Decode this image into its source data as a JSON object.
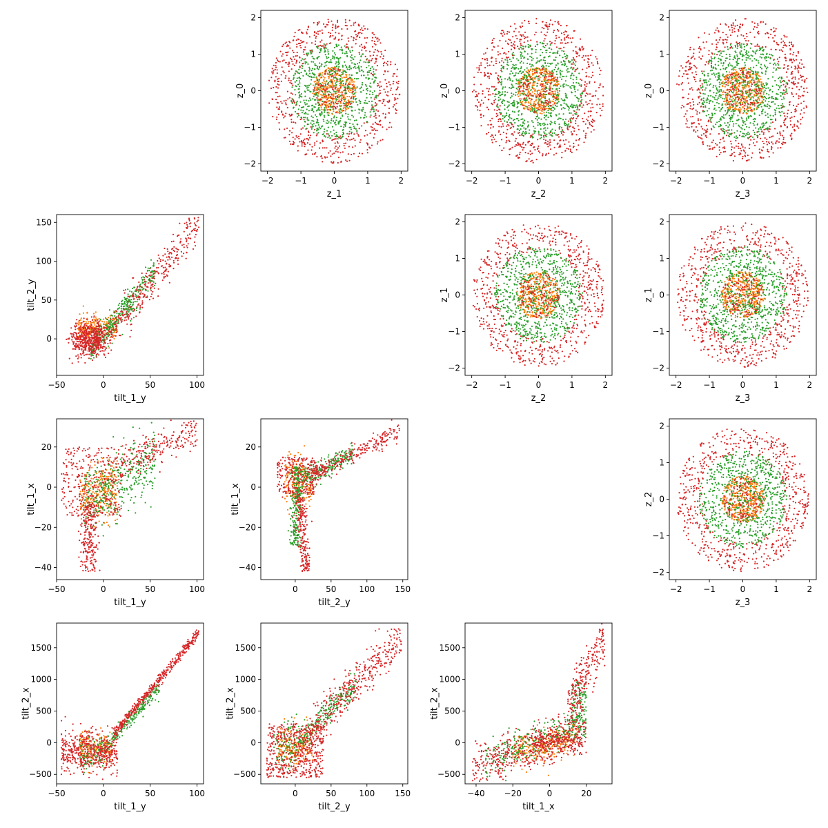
{
  "colors": {
    "outer": "#d62728",
    "middle": "#2ca02c",
    "inner": "#ff7f0e"
  },
  "chart_data": [
    {
      "type": "scatter",
      "row": 0,
      "col": 1,
      "xlabel": "z_1",
      "ylabel": "z_0",
      "xlim": [
        -2.2,
        2.2
      ],
      "ylim": [
        -2.2,
        2.2
      ],
      "xticks": [
        -2,
        -1,
        0,
        1,
        2
      ],
      "xtick_labels": [
        "−2",
        "−1",
        "0",
        "1",
        "2"
      ],
      "yticks": [
        -2,
        -1,
        0,
        1,
        2
      ],
      "ytick_labels": [
        "−2",
        "−1",
        "0",
        "1",
        "2"
      ],
      "pattern": "rings"
    },
    {
      "type": "scatter",
      "row": 0,
      "col": 2,
      "xlabel": "z_2",
      "ylabel": "z_0",
      "xlim": [
        -2.2,
        2.2
      ],
      "ylim": [
        -2.2,
        2.2
      ],
      "xticks": [
        -2,
        -1,
        0,
        1,
        2
      ],
      "xtick_labels": [
        "−2",
        "−1",
        "0",
        "1",
        "2"
      ],
      "yticks": [
        -2,
        -1,
        0,
        1,
        2
      ],
      "ytick_labels": [
        "−2",
        "−1",
        "0",
        "1",
        "2"
      ],
      "pattern": "rings"
    },
    {
      "type": "scatter",
      "row": 0,
      "col": 3,
      "xlabel": "z_3",
      "ylabel": "z_0",
      "xlim": [
        -2.2,
        2.2
      ],
      "ylim": [
        -2.2,
        2.2
      ],
      "xticks": [
        -2,
        -1,
        0,
        1,
        2
      ],
      "xtick_labels": [
        "−2",
        "−1",
        "0",
        "1",
        "2"
      ],
      "yticks": [
        -2,
        -1,
        0,
        1,
        2
      ],
      "ytick_labels": [
        "−2",
        "−1",
        "0",
        "1",
        "2"
      ],
      "pattern": "rings"
    },
    {
      "type": "scatter",
      "row": 1,
      "col": 0,
      "xlabel": "tilt_1_y",
      "ylabel": "tilt_2_y",
      "xlim": [
        -50,
        107
      ],
      "ylim": [
        -47,
        160
      ],
      "xticks": [
        -50,
        0,
        50,
        100
      ],
      "xtick_labels": [
        "−50",
        "0",
        "50",
        "100"
      ],
      "yticks": [
        0,
        50,
        100,
        150
      ],
      "ytick_labels": [
        "0",
        "50",
        "100",
        "150"
      ],
      "pattern": "t1y_t2y"
    },
    {
      "type": "scatter",
      "row": 1,
      "col": 2,
      "xlabel": "z_2",
      "ylabel": "z_1",
      "xlim": [
        -2.2,
        2.2
      ],
      "ylim": [
        -2.2,
        2.2
      ],
      "xticks": [
        -2,
        -1,
        0,
        1,
        2
      ],
      "xtick_labels": [
        "−2",
        "−1",
        "0",
        "1",
        "2"
      ],
      "yticks": [
        -2,
        -1,
        0,
        1,
        2
      ],
      "ytick_labels": [
        "−2",
        "−1",
        "0",
        "1",
        "2"
      ],
      "pattern": "rings"
    },
    {
      "type": "scatter",
      "row": 1,
      "col": 3,
      "xlabel": "z_3",
      "ylabel": "z_1",
      "xlim": [
        -2.2,
        2.2
      ],
      "ylim": [
        -2.2,
        2.2
      ],
      "xticks": [
        -2,
        -1,
        0,
        1,
        2
      ],
      "xtick_labels": [
        "−2",
        "−1",
        "0",
        "1",
        "2"
      ],
      "yticks": [
        -2,
        -1,
        0,
        1,
        2
      ],
      "ytick_labels": [
        "−2",
        "−1",
        "0",
        "1",
        "2"
      ],
      "pattern": "rings"
    },
    {
      "type": "scatter",
      "row": 2,
      "col": 0,
      "xlabel": "tilt_1_y",
      "ylabel": "tilt_1_x",
      "xlim": [
        -50,
        107
      ],
      "ylim": [
        -46,
        34
      ],
      "xticks": [
        -50,
        0,
        50,
        100
      ],
      "xtick_labels": [
        "−50",
        "0",
        "50",
        "100"
      ],
      "yticks": [
        -40,
        -20,
        0,
        20
      ],
      "ytick_labels": [
        "−40",
        "−20",
        "0",
        "20"
      ],
      "pattern": "t1y_t1x"
    },
    {
      "type": "scatter",
      "row": 2,
      "col": 1,
      "xlabel": "tilt_2_y",
      "ylabel": "tilt_1_x",
      "xlim": [
        -48,
        157
      ],
      "ylim": [
        -46,
        34
      ],
      "xticks": [
        0,
        50,
        100,
        150
      ],
      "xtick_labels": [
        "0",
        "50",
        "100",
        "150"
      ],
      "yticks": [
        -40,
        -20,
        0,
        20
      ],
      "ytick_labels": [
        "−40",
        "−20",
        "0",
        "20"
      ],
      "pattern": "t2y_t1x"
    },
    {
      "type": "scatter",
      "row": 2,
      "col": 3,
      "xlabel": "z_3",
      "ylabel": "z_2",
      "xlim": [
        -2.2,
        2.2
      ],
      "ylim": [
        -2.2,
        2.2
      ],
      "xticks": [
        -2,
        -1,
        0,
        1,
        2
      ],
      "xtick_labels": [
        "−2",
        "−1",
        "0",
        "1",
        "2"
      ],
      "yticks": [
        -2,
        -1,
        0,
        1,
        2
      ],
      "ytick_labels": [
        "−2",
        "−1",
        "0",
        "1",
        "2"
      ],
      "pattern": "rings"
    },
    {
      "type": "scatter",
      "row": 3,
      "col": 0,
      "xlabel": "tilt_1_y",
      "ylabel": "tilt_2_x",
      "xlim": [
        -50,
        107
      ],
      "ylim": [
        -650,
        1890
      ],
      "xticks": [
        -50,
        0,
        50,
        100
      ],
      "xtick_labels": [
        "−50",
        "0",
        "50",
        "100"
      ],
      "yticks": [
        -500,
        0,
        500,
        1000,
        1500
      ],
      "ytick_labels": [
        "−500",
        "0",
        "500",
        "1000",
        "1500"
      ],
      "pattern": "t1y_t2x"
    },
    {
      "type": "scatter",
      "row": 3,
      "col": 1,
      "xlabel": "tilt_2_y",
      "ylabel": "tilt_2_x",
      "xlim": [
        -48,
        157
      ],
      "ylim": [
        -650,
        1890
      ],
      "xticks": [
        0,
        50,
        100,
        150
      ],
      "xtick_labels": [
        "0",
        "50",
        "100",
        "150"
      ],
      "yticks": [
        -500,
        0,
        500,
        1000,
        1500
      ],
      "ytick_labels": [
        "−500",
        "0",
        "500",
        "1000",
        "1500"
      ],
      "pattern": "t2y_t2x"
    },
    {
      "type": "scatter",
      "row": 3,
      "col": 2,
      "xlabel": "tilt_1_x",
      "ylabel": "tilt_2_x",
      "xlim": [
        -46,
        34
      ],
      "ylim": [
        -650,
        1890
      ],
      "xticks": [
        -40,
        -20,
        0,
        20
      ],
      "xtick_labels": [
        "−40",
        "−20",
        "0",
        "20"
      ],
      "yticks": [
        -500,
        0,
        500,
        1000,
        1500
      ],
      "ytick_labels": [
        "−500",
        "0",
        "500",
        "1000",
        "1500"
      ],
      "pattern": "t1x_t2x"
    }
  ]
}
